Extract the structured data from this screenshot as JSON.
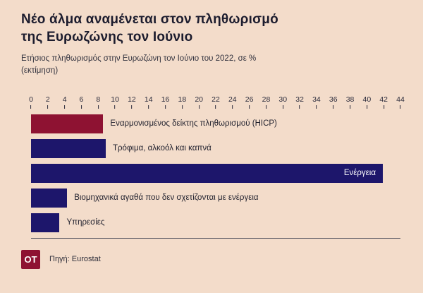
{
  "header": {
    "title_line1": "Νέο άλμα αναμένεται στον πληθωρισμό",
    "title_line2": "της Ευρωζώνης τον Ιούνιο",
    "subtitle_line1": "Ετήσιος πληθωρισμός στην Ευρωζώνη τον Ιούνιο του 2022, σε %",
    "subtitle_line2": "(εκτίμηση)"
  },
  "footer": {
    "logo_text": "OT",
    "source_label": "Πηγή:  Eurostat"
  },
  "colors": {
    "background": "#f3dcca",
    "bar_accent": "#8e1232",
    "bar_navy": "#1d166b",
    "title_text": "#1c1c2e",
    "axis_text": "#2d2d3d"
  },
  "chart_data": {
    "type": "bar",
    "orientation": "horizontal",
    "title": "Νέο άλμα αναμένεται στον πληθωρισμό της Ευρωζώνης τον Ιούνιο",
    "subtitle": "Ετήσιος πληθωρισμός στην Ευρωζώνη τον Ιούνιο του 2022, σε % (εκτίμηση)",
    "categories": [
      "Εναρμονισμένος δείκτης πληθωρισμού (HICP)",
      "Τρόφιμα, αλκοόλ και καπνά",
      "Ενέργεια",
      "Βιομηχανικά αγαθά που δεν σχετίζονται με ενέργεια",
      "Υπηρεσίες"
    ],
    "values": [
      8.6,
      8.9,
      41.9,
      4.3,
      3.4
    ],
    "unit": "%",
    "xlim": [
      0,
      44
    ],
    "x_ticks": [
      0,
      2,
      4,
      6,
      8,
      10,
      12,
      14,
      16,
      18,
      20,
      22,
      24,
      26,
      28,
      30,
      32,
      34,
      36,
      38,
      40,
      42,
      44
    ],
    "grid": false,
    "legend": false,
    "bar_colors": [
      "#8e1232",
      "#1d166b",
      "#1d166b",
      "#1d166b",
      "#1d166b"
    ],
    "label_inside": [
      false,
      false,
      true,
      false,
      false
    ],
    "source": "Eurostat"
  }
}
